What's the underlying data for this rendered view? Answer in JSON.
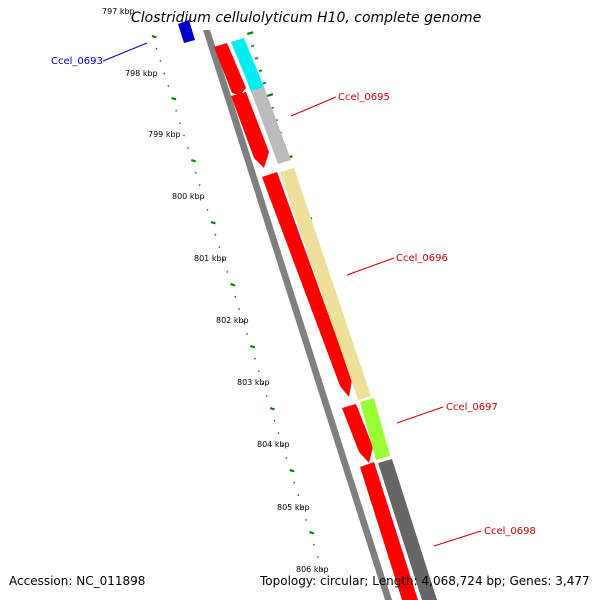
{
  "title": "Clostridium cellulolyticum H10, complete genome",
  "tick_labels": [
    "797 kbp",
    "798 kbp",
    "799 kbp",
    "800 kbp",
    "801 kbp",
    "802 kbp",
    "803 kbp",
    "804 kbp",
    "805 kbp",
    "806 kbp"
  ],
  "genes": [
    {
      "name": "Ccel_0693",
      "strand": "forward",
      "color": "#0000cc",
      "label_color": "#0000cc"
    },
    {
      "name": "Ccel_0695",
      "strand": "reverse",
      "color": "#ff0000",
      "label_color": "#cc0000"
    },
    {
      "name": "Ccel_0696",
      "strand": "reverse",
      "color": "#ff0000",
      "label_color": "#cc0000"
    },
    {
      "name": "Ccel_0697",
      "strand": "reverse",
      "color": "#ff0000",
      "label_color": "#cc0000"
    },
    {
      "name": "Ccel_0698",
      "strand": "reverse",
      "color": "#ff0000",
      "label_color": "#cc0000"
    }
  ],
  "function_colors": {
    "cyan": "#00eeee",
    "light_gray": "#bbbbbb",
    "khaki": "#eee09a",
    "green_yellow": "#99ff33",
    "dark_gray": "#666666"
  },
  "tick_color": "#008000",
  "backbone_color": "#808080",
  "footer": {
    "accession": "Accession: NC_011898",
    "topology": "Topology: circular; Length: 4,068,724 bp; Genes: 3,477"
  }
}
